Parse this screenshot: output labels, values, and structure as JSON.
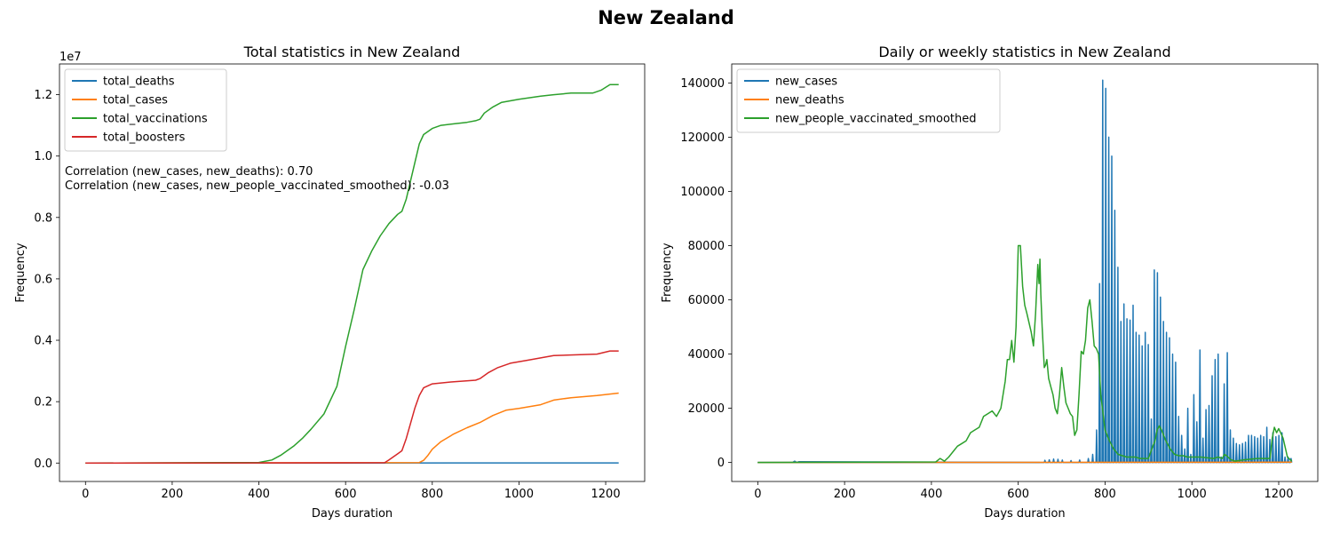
{
  "figure": {
    "suptitle": "New Zealand"
  },
  "chart_data": [
    {
      "type": "line",
      "title": "Total statistics in New Zealand",
      "xlabel": "Days duration",
      "ylabel": "Frequency",
      "y_scale_label": "1e7",
      "xlim": [
        -60,
        1290
      ],
      "ylim": [
        -600000,
        13000000
      ],
      "xticks": [
        0,
        200,
        400,
        600,
        800,
        1000,
        1200
      ],
      "yticks": [
        0,
        2000000,
        4000000,
        6000000,
        8000000,
        10000000,
        12000000
      ],
      "ytick_labels": [
        "0.0",
        "0.2",
        "0.4",
        "0.6",
        "0.8",
        "1.0",
        "1.2"
      ],
      "legend_position": "upper left",
      "annotations": [
        "Correlation (new_cases, new_deaths): 0.70",
        "Correlation (new_cases, new_people_vaccinated_smoothed): -0.03"
      ],
      "series": [
        {
          "name": "total_deaths",
          "color": "#1f77b4",
          "x": [
            0,
            1230
          ],
          "y": [
            0,
            5000
          ]
        },
        {
          "name": "total_cases",
          "color": "#ff7f0e",
          "x": [
            0,
            770,
            780,
            790,
            800,
            820,
            850,
            880,
            910,
            940,
            970,
            1000,
            1050,
            1080,
            1120,
            1180,
            1230
          ],
          "y": [
            0,
            15000,
            90000,
            250000,
            450000,
            700000,
            950000,
            1150000,
            1320000,
            1550000,
            1720000,
            1780000,
            1900000,
            2050000,
            2130000,
            2200000,
            2280000
          ]
        },
        {
          "name": "total_vaccinations",
          "color": "#2ca02c",
          "x": [
            0,
            400,
            430,
            450,
            480,
            500,
            520,
            550,
            580,
            600,
            620,
            640,
            660,
            680,
            700,
            720,
            730,
            740,
            750,
            760,
            770,
            780,
            800,
            820,
            850,
            880,
            900,
            910,
            920,
            940,
            960,
            1000,
            1050,
            1080,
            1120,
            1170,
            1190,
            1210,
            1230
          ],
          "y": [
            0,
            20000,
            100000,
            250000,
            550000,
            800000,
            1100000,
            1600000,
            2500000,
            3800000,
            5000000,
            6300000,
            6900000,
            7400000,
            7800000,
            8100000,
            8200000,
            8600000,
            9200000,
            9800000,
            10400000,
            10700000,
            10900000,
            11000000,
            11050000,
            11100000,
            11150000,
            11200000,
            11400000,
            11600000,
            11750000,
            11850000,
            11950000,
            12000000,
            12050000,
            12050000,
            12150000,
            12330000,
            12330000
          ]
        },
        {
          "name": "total_boosters",
          "color": "#d62728",
          "x": [
            0,
            690,
            700,
            720,
            730,
            740,
            750,
            760,
            770,
            780,
            800,
            850,
            900,
            910,
            930,
            950,
            980,
            1020,
            1080,
            1180,
            1210,
            1230
          ],
          "y": [
            0,
            10000,
            100000,
            300000,
            400000,
            800000,
            1300000,
            1800000,
            2200000,
            2450000,
            2580000,
            2650000,
            2700000,
            2750000,
            2950000,
            3100000,
            3250000,
            3350000,
            3500000,
            3550000,
            3650000,
            3650000
          ]
        }
      ]
    },
    {
      "type": "line",
      "title": "Daily or weekly statistics in New Zealand",
      "xlabel": "Days duration",
      "ylabel": "Frequency",
      "xlim": [
        -60,
        1290
      ],
      "ylim": [
        -7000,
        147000
      ],
      "xticks": [
        0,
        200,
        400,
        600,
        800,
        1000,
        1200
      ],
      "yticks": [
        0,
        20000,
        40000,
        60000,
        80000,
        100000,
        120000,
        140000
      ],
      "ytick_labels": [
        "0",
        "20000",
        "40000",
        "60000",
        "80000",
        "100000",
        "120000",
        "140000"
      ],
      "legend_position": "upper left",
      "new_cases_spikes": {
        "x": [
          660,
          670,
          680,
          690,
          700,
          720,
          740,
          760,
          770,
          779,
          786,
          793,
          800,
          807,
          814,
          821,
          828,
          835,
          842,
          849,
          856,
          863,
          870,
          877,
          884,
          891,
          898,
          905,
          912,
          919,
          926,
          933,
          940,
          947,
          954,
          961,
          968,
          975,
          982,
          989,
          996,
          1003,
          1010,
          1017,
          1024,
          1031,
          1038,
          1045,
          1052,
          1059,
          1066,
          1073,
          1080,
          1087,
          1094,
          1101,
          1108,
          1115,
          1122,
          1129,
          1136,
          1143,
          1150,
          1157,
          1164,
          1171,
          1178,
          1185,
          1192,
          1199,
          1206,
          1213,
          1220,
          1227
        ],
        "y": [
          800,
          1000,
          1300,
          1200,
          900,
          700,
          900,
          1500,
          3000,
          12000,
          66000,
          141000,
          138000,
          120000,
          113000,
          93000,
          72000,
          52000,
          58500,
          53000,
          52500,
          58000,
          48000,
          47000,
          43000,
          48000,
          43500,
          16000,
          71000,
          70000,
          61000,
          52000,
          48000,
          46000,
          40000,
          37000,
          17000,
          10000,
          5000,
          20000,
          3000,
          25000,
          15000,
          41500,
          9000,
          19500,
          21000,
          32000,
          38000,
          40000,
          2000,
          29000,
          40500,
          12000,
          9000,
          7000,
          6500,
          7000,
          7500,
          10000,
          10000,
          9500,
          9000,
          10000,
          9500,
          13000,
          8500,
          11000,
          9500,
          10000,
          11000,
          2000,
          2000,
          1500
        ]
      },
      "series": [
        {
          "name": "new_cases",
          "color": "#1f77b4",
          "x": [
            0,
            80,
            85,
            90,
            95,
            650
          ],
          "y": [
            0,
            0,
            500,
            0,
            300,
            0
          ]
        },
        {
          "name": "new_deaths",
          "color": "#ff7f0e",
          "x": [
            0,
            1230
          ],
          "y": [
            0,
            100
          ]
        },
        {
          "name": "new_people_vaccinated_smoothed",
          "color": "#2ca02c",
          "x": [
            0,
            410,
            420,
            430,
            440,
            450,
            460,
            470,
            480,
            490,
            500,
            510,
            520,
            530,
            540,
            550,
            560,
            570,
            575,
            580,
            585,
            590,
            595,
            600,
            605,
            610,
            615,
            620,
            630,
            635,
            640,
            645,
            648,
            650,
            652,
            655,
            660,
            663,
            666,
            670,
            675,
            680,
            685,
            690,
            695,
            700,
            705,
            710,
            715,
            720,
            725,
            730,
            735,
            740,
            745,
            750,
            755,
            760,
            765,
            770,
            775,
            780,
            785,
            790,
            800,
            810,
            820,
            830,
            840,
            850,
            860,
            870,
            880,
            890,
            900,
            910,
            915,
            920,
            925,
            930,
            940,
            950,
            960,
            970,
            980,
            990,
            1000,
            1020,
            1050,
            1060,
            1070,
            1075,
            1080,
            1090,
            1100,
            1120,
            1150,
            1180,
            1185,
            1190,
            1195,
            1200,
            1210,
            1220,
            1230
          ],
          "y": [
            0,
            200,
            1500,
            500,
            2000,
            4000,
            6000,
            7000,
            8000,
            11000,
            12000,
            13000,
            17000,
            18000,
            19000,
            17000,
            20000,
            30000,
            38000,
            38000,
            45000,
            37000,
            50000,
            80000,
            80000,
            65000,
            58000,
            55000,
            48000,
            43000,
            55000,
            73000,
            66000,
            75000,
            62000,
            50000,
            35000,
            36000,
            38000,
            31000,
            28000,
            25000,
            20000,
            18000,
            25000,
            35000,
            28000,
            22000,
            20000,
            18000,
            17000,
            10000,
            12000,
            25000,
            41000,
            40000,
            45000,
            57000,
            60000,
            52000,
            43000,
            42000,
            40000,
            25000,
            12000,
            8000,
            5000,
            3000,
            2500,
            2000,
            2000,
            2000,
            1500,
            1500,
            1500,
            6000,
            8000,
            12000,
            13500,
            12000,
            8000,
            5000,
            3000,
            2500,
            2500,
            2000,
            2000,
            2000,
            1500,
            2000,
            1500,
            3000,
            2500,
            1000,
            500,
            1000,
            1500,
            1500,
            9000,
            13000,
            11000,
            12500,
            9000,
            2000,
            500
          ]
        }
      ]
    }
  ]
}
